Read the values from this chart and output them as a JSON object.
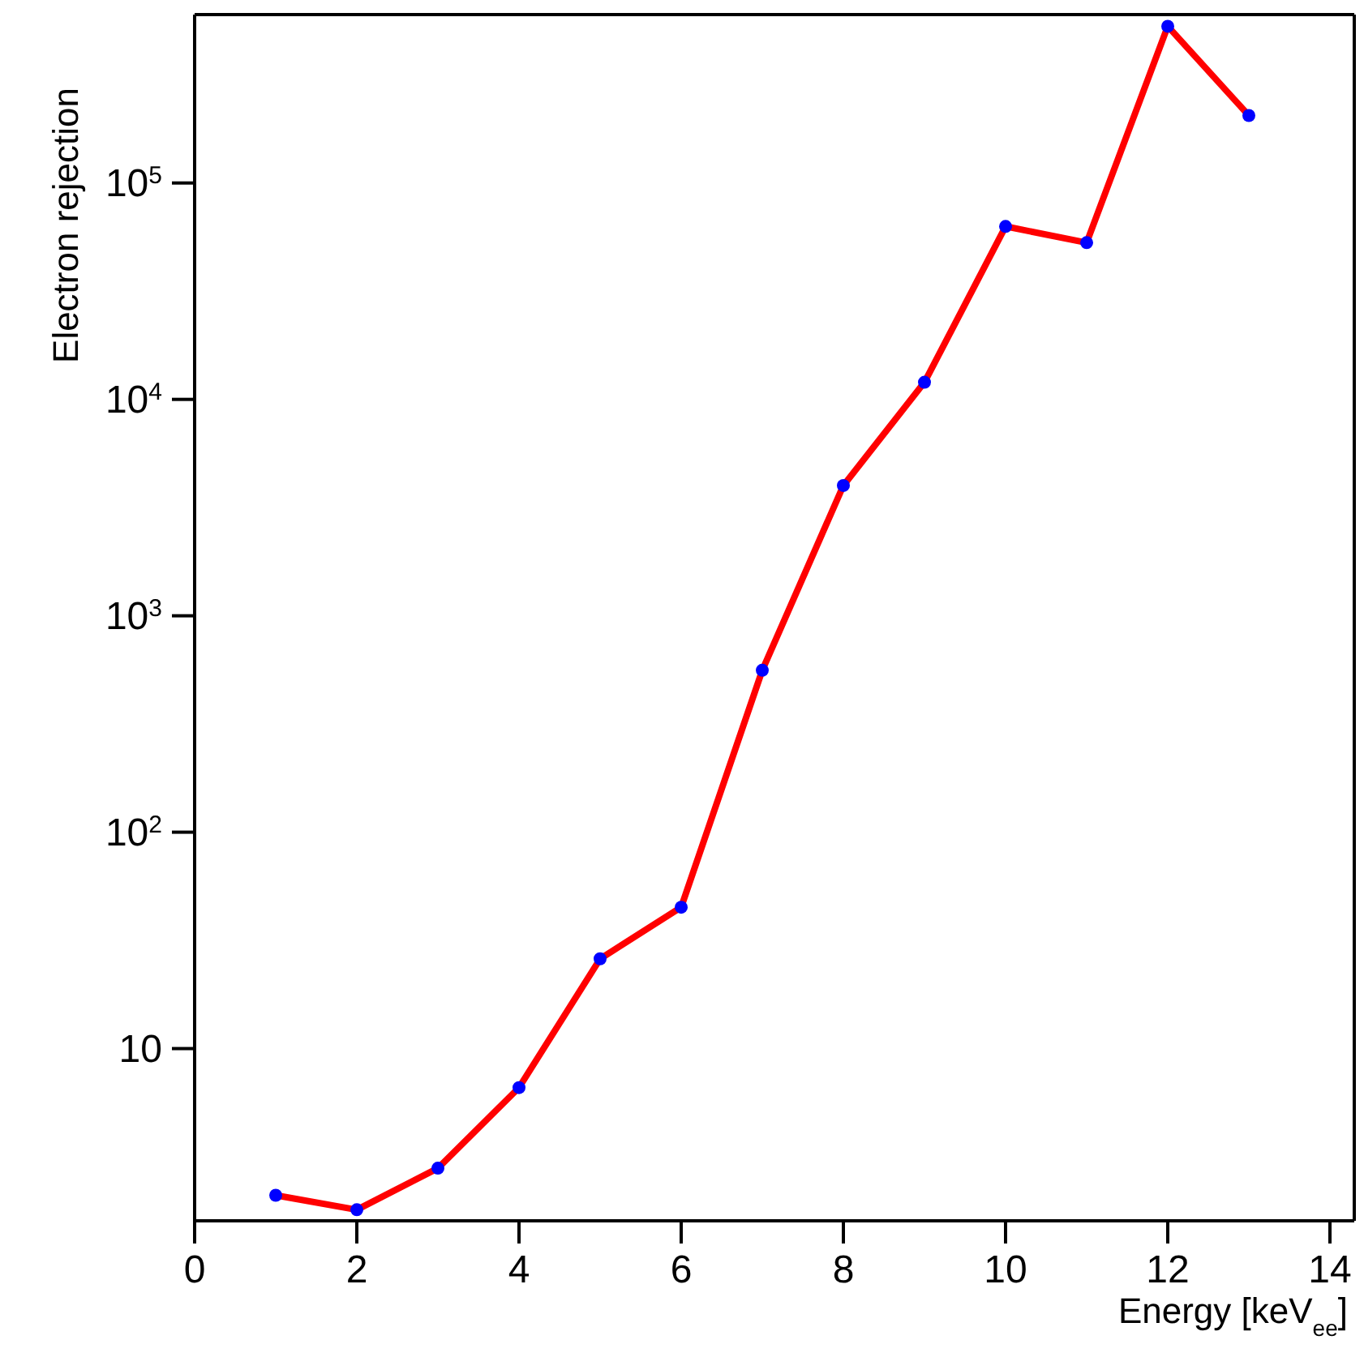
{
  "chart_data": {
    "type": "line",
    "xlabel": "Energy [keV$_{ee}$]",
    "ylabel": "Electron rejection",
    "x": [
      1,
      2,
      3,
      4,
      5,
      6,
      7,
      8,
      9,
      10,
      11,
      12,
      13
    ],
    "series": [
      {
        "color": "#ff0000",
        "colors": [
          "#0000ff",
          "#0000ff",
          "#0000ff",
          "#0000ff",
          "#0000ff",
          "#0000ff",
          "#0000ff",
          "#0000ff",
          "#0000ff",
          "#0000ff",
          "#0000ff",
          "#0000ff",
          "#0000ff"
        ],
        "values": [
          2.1,
          1.8,
          2.8,
          6.6,
          26,
          45,
          560,
          4000,
          12000,
          63000,
          53000,
          530000,
          205000
        ]
      }
    ],
    "xlim": [
      0,
      14.3
    ],
    "xticks": [
      0,
      2,
      4,
      6,
      8,
      10,
      12,
      14
    ],
    "ylim": [
      1.6,
      600000
    ],
    "yticks": [
      10,
      {
        "value": 100,
        "label": "10$^{2}$"
      },
      {
        "value": 1000,
        "label": "10$^{3}$"
      },
      {
        "value": 10000,
        "label": "10$^{4}$"
      },
      {
        "value": 100000,
        "label": "10$^{5}$"
      }
    ],
    "log": "y",
    "grid": false,
    "legend": false,
    "marker": "circle",
    "line_style": "solid"
  }
}
